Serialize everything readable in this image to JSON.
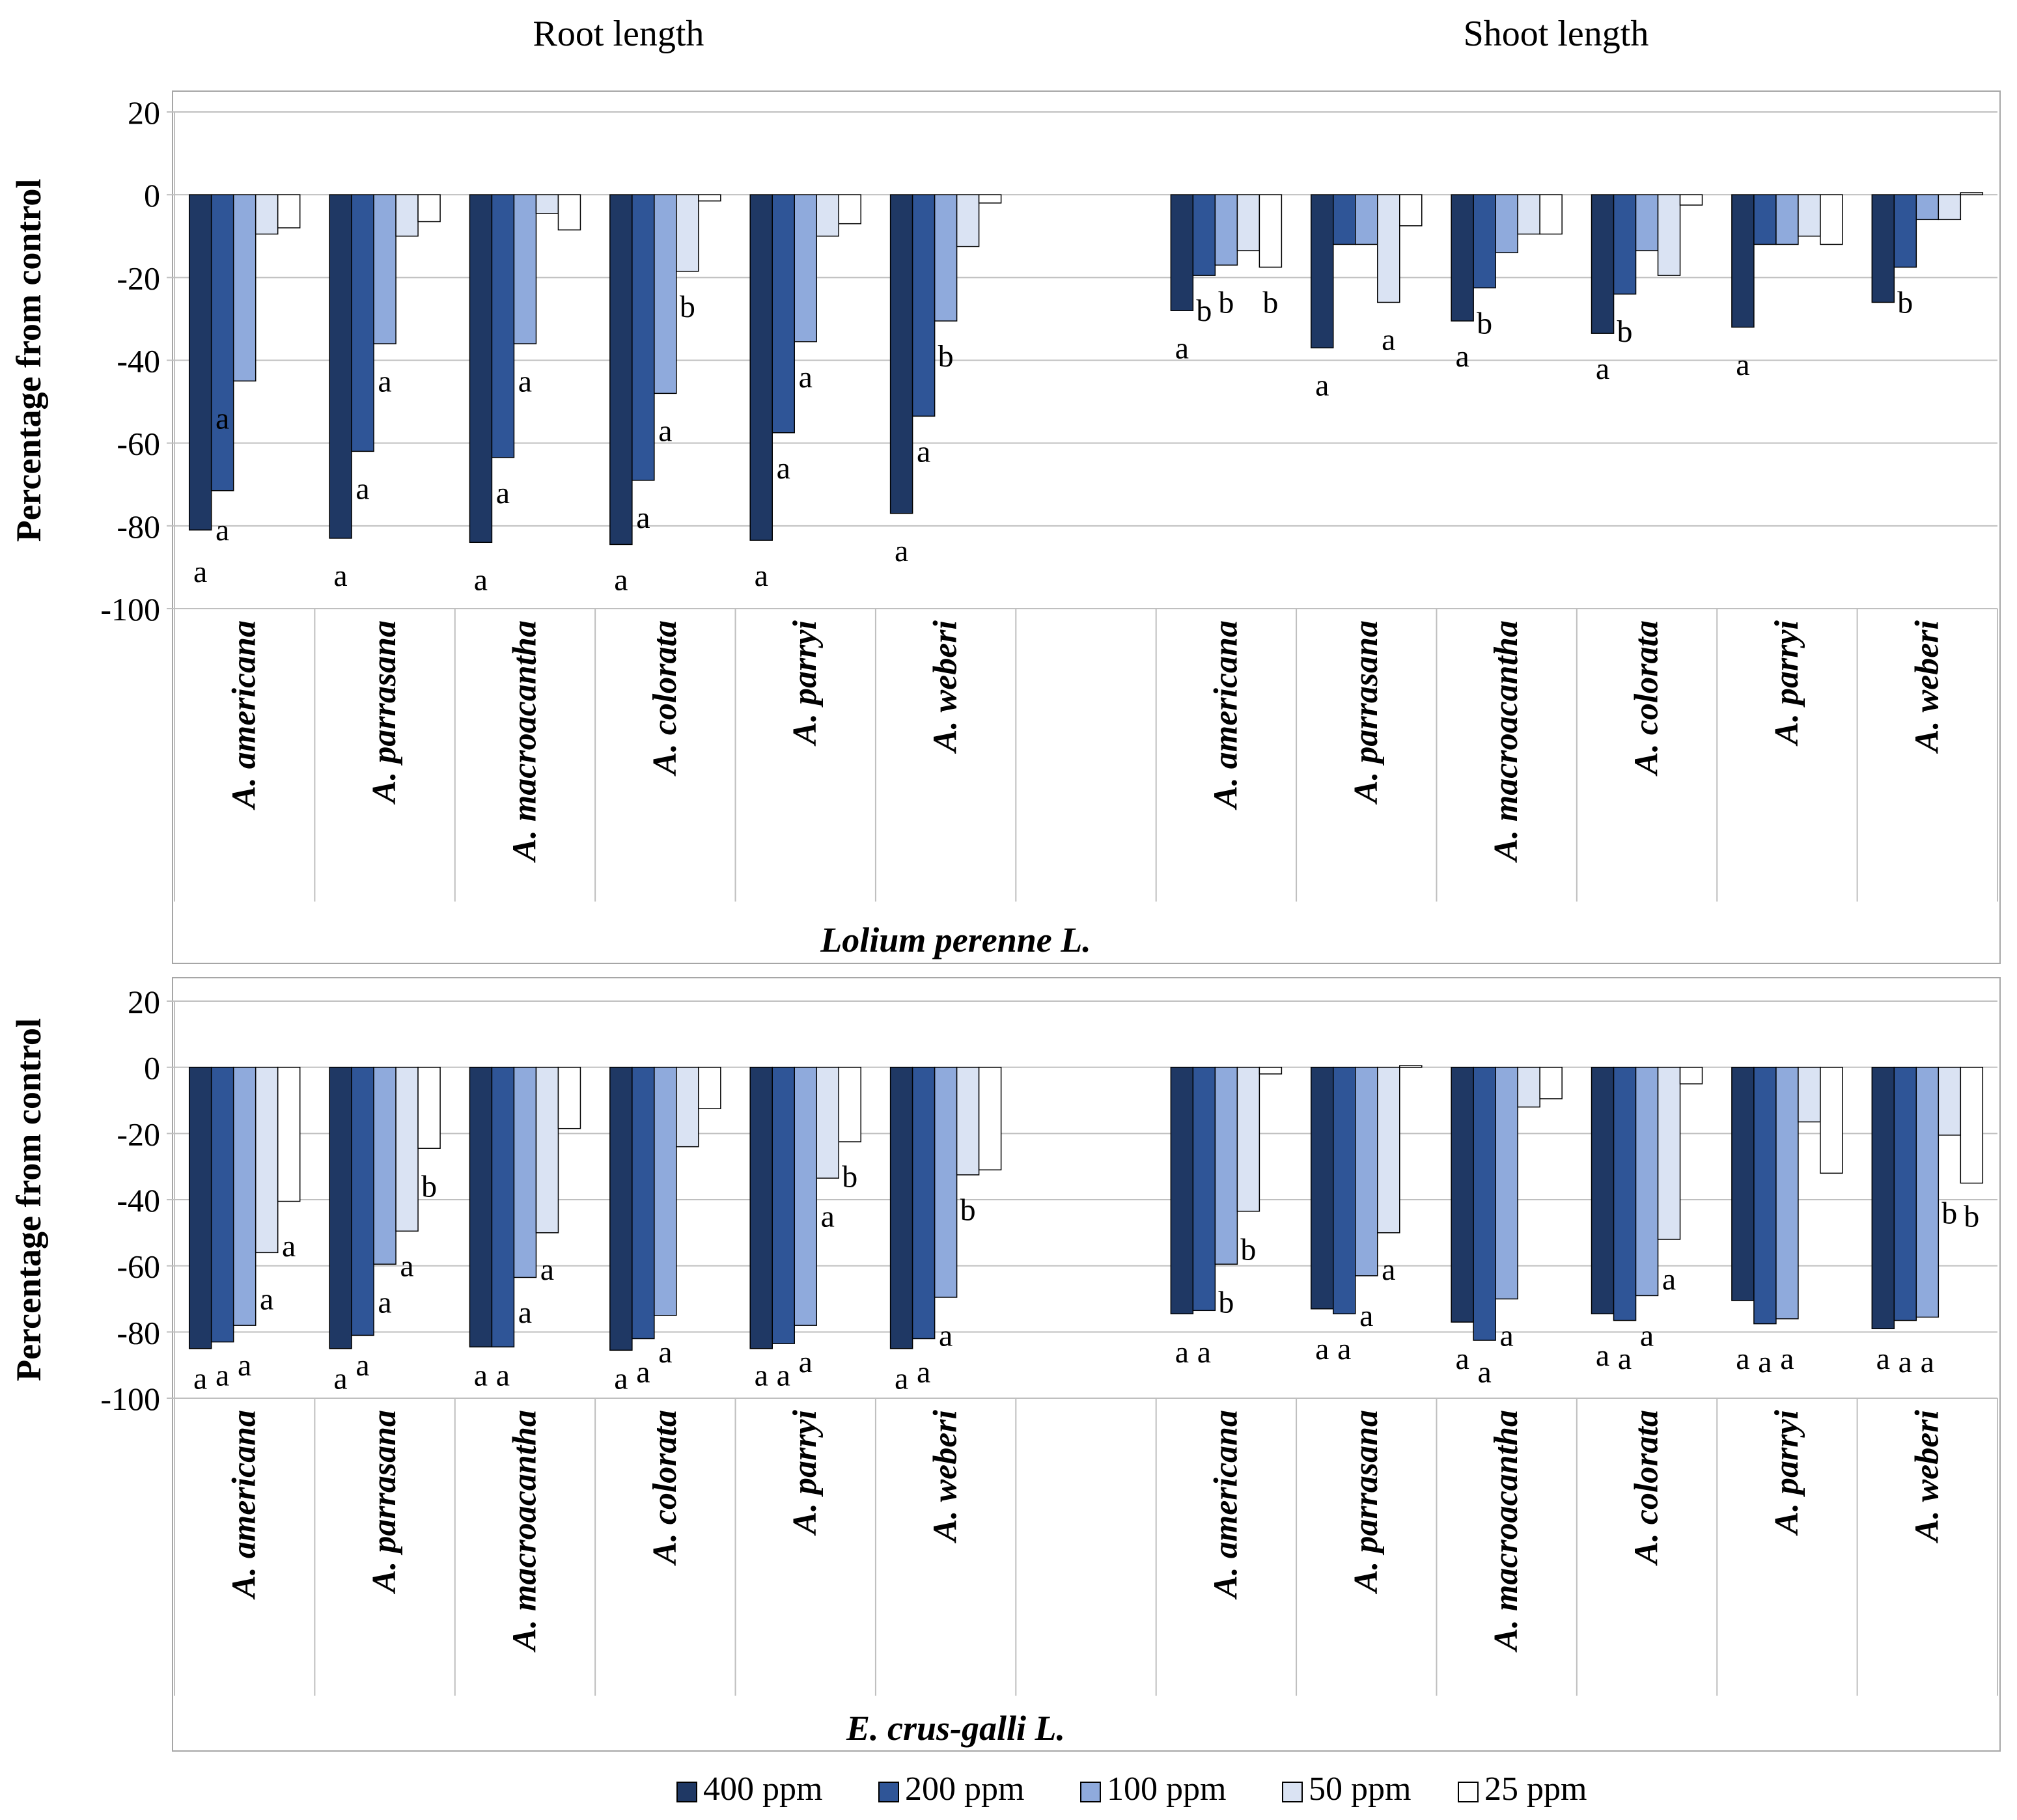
{
  "figure": {
    "section_titles": [
      "Root length",
      "Shoot length"
    ],
    "legend_title": ""
  },
  "colors": {
    "series": [
      "#1f3864",
      "#2f5597",
      "#8faadc",
      "#dae3f3",
      "#ffffff"
    ],
    "grid": "#bfbfbf",
    "frame": "#a6a6a6",
    "bar_edge": "#000000",
    "text": "#000000"
  },
  "chart_data": [
    {
      "type": "bar",
      "title": "Lolium perenne L.",
      "ylabel": "Percentage from control",
      "ylim": [
        -100,
        20
      ],
      "yticks": [
        20,
        0,
        -20,
        -40,
        -60,
        -80,
        -100
      ],
      "groups": [
        "Root length",
        "Shoot length"
      ],
      "categories": [
        "A. americana",
        "A. parrasana",
        "A. macroacantha",
        "A. colorata",
        "A. parryi",
        "A. weberi",
        "",
        "A. americana",
        "A. parrasana",
        "A. macroacantha",
        "A. colorata",
        "A. parryi",
        "A. weberi"
      ],
      "series": [
        {
          "name": "400 ppm",
          "values": [
            -81,
            -83,
            -84,
            -84.5,
            -83.5,
            -77,
            null,
            -28,
            -37,
            -30.5,
            -33.5,
            -32,
            -26
          ]
        },
        {
          "name": "200 ppm",
          "values": [
            -71.5,
            -62,
            -63.5,
            -69,
            -57.5,
            -53.5,
            null,
            -19.5,
            -12,
            -22.5,
            -24,
            -12,
            -17.5
          ]
        },
        {
          "name": "100 ppm",
          "values": [
            -45,
            -36,
            -36,
            -48,
            -35.5,
            -30.5,
            null,
            -17,
            -12,
            -14,
            -13.5,
            -12,
            -6
          ]
        },
        {
          "name": "50 ppm",
          "values": [
            -9.5,
            -10,
            -4.5,
            -18.5,
            -10,
            -12.5,
            null,
            -13.5,
            -26,
            -9.5,
            -19.5,
            -10,
            -6
          ]
        },
        {
          "name": "25 ppm",
          "values": [
            -8,
            -6.5,
            -8.5,
            -1.5,
            -7,
            -2,
            null,
            -17.5,
            -7.5,
            -9.5,
            -2.5,
            -12,
            0.5
          ]
        }
      ],
      "annotations": [
        {
          "cat": 0,
          "series": 0,
          "value": -91,
          "text": "a"
        },
        {
          "cat": 0,
          "series": 1,
          "value": -81,
          "text": "a"
        },
        {
          "cat": 0,
          "series": 1,
          "value": -54,
          "text": "a"
        },
        {
          "cat": 1,
          "series": 0,
          "value": -92,
          "text": "a"
        },
        {
          "cat": 1,
          "series": 1,
          "value": -71,
          "text": "a"
        },
        {
          "cat": 1,
          "series": 2,
          "value": -45,
          "text": "a"
        },
        {
          "cat": 2,
          "series": 0,
          "value": -93,
          "text": "a"
        },
        {
          "cat": 2,
          "series": 1,
          "value": -72,
          "text": "a"
        },
        {
          "cat": 2,
          "series": 2,
          "value": -45,
          "text": "a"
        },
        {
          "cat": 3,
          "series": 0,
          "value": -93,
          "text": "a"
        },
        {
          "cat": 3,
          "series": 1,
          "value": -78,
          "text": "a"
        },
        {
          "cat": 3,
          "series": 2,
          "value": -57,
          "text": "a"
        },
        {
          "cat": 3,
          "series": 3,
          "value": -27,
          "text": "b"
        },
        {
          "cat": 4,
          "series": 0,
          "value": -92,
          "text": "a"
        },
        {
          "cat": 4,
          "series": 1,
          "value": -66,
          "text": "a"
        },
        {
          "cat": 4,
          "series": 2,
          "value": -44,
          "text": "a"
        },
        {
          "cat": 5,
          "series": 0,
          "value": -86,
          "text": "a"
        },
        {
          "cat": 5,
          "series": 1,
          "value": -62,
          "text": "a"
        },
        {
          "cat": 5,
          "series": 2,
          "value": -39,
          "text": "b"
        },
        {
          "cat": 7,
          "series": 0,
          "value": -37,
          "text": "a"
        },
        {
          "cat": 7,
          "series": 1,
          "value": -28,
          "text": "b"
        },
        {
          "cat": 7,
          "series": 2,
          "value": -26,
          "text": "b"
        },
        {
          "cat": 7,
          "series": 4,
          "value": -26,
          "text": "b"
        },
        {
          "cat": 8,
          "series": 0,
          "value": -46,
          "text": "a"
        },
        {
          "cat": 8,
          "series": 3,
          "value": -35,
          "text": "a"
        },
        {
          "cat": 9,
          "series": 0,
          "value": -39,
          "text": "a"
        },
        {
          "cat": 9,
          "series": 1,
          "value": -31,
          "text": "b"
        },
        {
          "cat": 10,
          "series": 0,
          "value": -42,
          "text": "a"
        },
        {
          "cat": 10,
          "series": 1,
          "value": -33,
          "text": "b"
        },
        {
          "cat": 11,
          "series": 0,
          "value": -41,
          "text": "a"
        },
        {
          "cat": 12,
          "series": 1,
          "value": -26,
          "text": "b"
        }
      ]
    },
    {
      "type": "bar",
      "title": "E. crus-galli L.",
      "ylabel": "Percentage from control",
      "ylim": [
        -100,
        20
      ],
      "yticks": [
        20,
        0,
        -20,
        -40,
        -60,
        -80,
        -100
      ],
      "groups": [
        "Root length",
        "Shoot length"
      ],
      "categories": [
        "A. americana",
        "A. parrasana",
        "A. macroacantha",
        "A. colorata",
        "A. parryi",
        "A. weberi",
        "",
        "A. americana",
        "A. parrasana",
        "A. macroacantha",
        "A. colorata",
        "A. parryi",
        "A. weberi"
      ],
      "series": [
        {
          "name": "400 ppm",
          "values": [
            -85,
            -85,
            -84.5,
            -85.5,
            -85,
            -85,
            null,
            -74.5,
            -73,
            -77,
            -74.5,
            -70.5,
            -79
          ]
        },
        {
          "name": "200 ppm",
          "values": [
            -83,
            -81,
            -84.5,
            -82,
            -83.5,
            -82,
            null,
            -73.5,
            -74.5,
            -82.5,
            -76.5,
            -77.5,
            -76.5
          ]
        },
        {
          "name": "100 ppm",
          "values": [
            -78,
            -59.5,
            -63.5,
            -75,
            -78,
            -69.5,
            null,
            -59.5,
            -63,
            -70,
            -69,
            -76,
            -75.5
          ]
        },
        {
          "name": "50 ppm",
          "values": [
            -56,
            -49.5,
            -50,
            -24,
            -33.5,
            -32.5,
            null,
            -43.5,
            -50,
            -12,
            -52,
            -16.5,
            -20.5
          ]
        },
        {
          "name": "25 ppm",
          "values": [
            -40.5,
            -24.5,
            -18.5,
            -12.5,
            -22.5,
            -31,
            null,
            -2,
            0.5,
            -9.5,
            -5,
            -32,
            -35
          ]
        }
      ],
      "annotations": [
        {
          "cat": 0,
          "series": 0,
          "value": -94,
          "text": "a"
        },
        {
          "cat": 0,
          "series": 1,
          "value": -93,
          "text": "a"
        },
        {
          "cat": 0,
          "series": 2,
          "value": -90,
          "text": "a"
        },
        {
          "cat": 0,
          "series": 3,
          "value": -70,
          "text": "a"
        },
        {
          "cat": 0,
          "series": 4,
          "value": -54,
          "text": "a"
        },
        {
          "cat": 1,
          "series": 0,
          "value": -94,
          "text": "a"
        },
        {
          "cat": 1,
          "series": 1,
          "value": -90,
          "text": "a"
        },
        {
          "cat": 1,
          "series": 2,
          "value": -71,
          "text": "a"
        },
        {
          "cat": 1,
          "series": 3,
          "value": -60,
          "text": "a"
        },
        {
          "cat": 1,
          "series": 4,
          "value": -36,
          "text": "b"
        },
        {
          "cat": 2,
          "series": 0,
          "value": -93,
          "text": "a"
        },
        {
          "cat": 2,
          "series": 1,
          "value": -93,
          "text": "a"
        },
        {
          "cat": 2,
          "series": 2,
          "value": -74,
          "text": "a"
        },
        {
          "cat": 2,
          "series": 3,
          "value": -61,
          "text": "a"
        },
        {
          "cat": 3,
          "series": 0,
          "value": -94,
          "text": "a"
        },
        {
          "cat": 3,
          "series": 1,
          "value": -92,
          "text": "a"
        },
        {
          "cat": 3,
          "series": 2,
          "value": -86,
          "text": "a"
        },
        {
          "cat": 4,
          "series": 0,
          "value": -93,
          "text": "a"
        },
        {
          "cat": 4,
          "series": 1,
          "value": -93,
          "text": "a"
        },
        {
          "cat": 4,
          "series": 2,
          "value": -89,
          "text": "a"
        },
        {
          "cat": 4,
          "series": 3,
          "value": -45,
          "text": "a"
        },
        {
          "cat": 4,
          "series": 4,
          "value": -33,
          "text": "b"
        },
        {
          "cat": 5,
          "series": 0,
          "value": -94,
          "text": "a"
        },
        {
          "cat": 5,
          "series": 1,
          "value": -92,
          "text": "a"
        },
        {
          "cat": 5,
          "series": 2,
          "value": -81,
          "text": "a"
        },
        {
          "cat": 5,
          "series": 3,
          "value": -43,
          "text": "b"
        },
        {
          "cat": 7,
          "series": 0,
          "value": -86,
          "text": "a"
        },
        {
          "cat": 7,
          "series": 1,
          "value": -86,
          "text": "a"
        },
        {
          "cat": 7,
          "series": 2,
          "value": -71,
          "text": "b"
        },
        {
          "cat": 7,
          "series": 3,
          "value": -55,
          "text": "b"
        },
        {
          "cat": 8,
          "series": 0,
          "value": -85,
          "text": "a"
        },
        {
          "cat": 8,
          "series": 1,
          "value": -85,
          "text": "a"
        },
        {
          "cat": 8,
          "series": 2,
          "value": -75,
          "text": "a"
        },
        {
          "cat": 8,
          "series": 3,
          "value": -61,
          "text": "a"
        },
        {
          "cat": 9,
          "series": 0,
          "value": -88,
          "text": "a"
        },
        {
          "cat": 9,
          "series": 1,
          "value": -92,
          "text": "a"
        },
        {
          "cat": 9,
          "series": 2,
          "value": -81,
          "text": "a"
        },
        {
          "cat": 10,
          "series": 0,
          "value": -87,
          "text": "a"
        },
        {
          "cat": 10,
          "series": 1,
          "value": -88,
          "text": "a"
        },
        {
          "cat": 10,
          "series": 2,
          "value": -81,
          "text": "a"
        },
        {
          "cat": 10,
          "series": 3,
          "value": -64,
          "text": "a"
        },
        {
          "cat": 11,
          "series": 0,
          "value": -88,
          "text": "a"
        },
        {
          "cat": 11,
          "series": 1,
          "value": -89,
          "text": "a"
        },
        {
          "cat": 11,
          "series": 2,
          "value": -88,
          "text": "a"
        },
        {
          "cat": 12,
          "series": 0,
          "value": -88,
          "text": "a"
        },
        {
          "cat": 12,
          "series": 1,
          "value": -89,
          "text": "a"
        },
        {
          "cat": 12,
          "series": 2,
          "value": -89,
          "text": "a"
        },
        {
          "cat": 12,
          "series": 3,
          "value": -44,
          "text": "b"
        },
        {
          "cat": 12,
          "series": 4,
          "value": -45,
          "text": "b"
        }
      ]
    }
  ],
  "legend": {
    "entries": [
      "400 ppm",
      "200 ppm",
      "100 ppm",
      "50 ppm",
      "25 ppm"
    ]
  }
}
